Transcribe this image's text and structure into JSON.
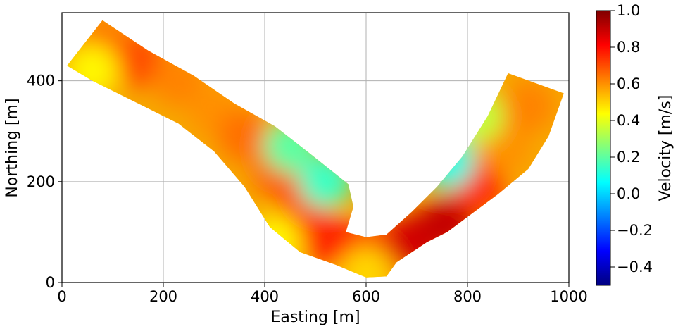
{
  "chart_data": {
    "type": "heatmap",
    "title": "",
    "xlabel": "Easting [m]",
    "ylabel": "Northing [m]",
    "xlim": [
      0,
      1000
    ],
    "ylim": [
      0,
      535
    ],
    "x_ticks": [
      0,
      200,
      400,
      600,
      800,
      1000
    ],
    "y_ticks": [
      0,
      200,
      400
    ],
    "grid": true,
    "colormap": "jet",
    "colorbar": {
      "label": "Velocity [m/s]",
      "range": [
        -0.5,
        1.0
      ],
      "ticks": [
        "1.0",
        "0.8",
        "0.6",
        "0.4",
        "0.2",
        "0.0",
        "−0.2",
        "−0.4"
      ],
      "tick_values": [
        1.0,
        0.8,
        0.6,
        0.4,
        0.2,
        0.0,
        -0.2,
        -0.4
      ],
      "placement": "right"
    },
    "river_channel": {
      "left_bank": [
        [
          10,
          430
        ],
        [
          80,
          520
        ],
        [
          170,
          460
        ],
        [
          260,
          410
        ],
        [
          340,
          355
        ],
        [
          420,
          310
        ],
        [
          490,
          255
        ],
        [
          565,
          195
        ],
        [
          575,
          150
        ],
        [
          560,
          100
        ],
        [
          600,
          90
        ],
        [
          640,
          95
        ],
        [
          690,
          140
        ],
        [
          740,
          190
        ],
        [
          790,
          250
        ],
        [
          840,
          330
        ],
        [
          880,
          415
        ]
      ],
      "right_bank": [
        [
          990,
          375
        ],
        [
          960,
          290
        ],
        [
          920,
          225
        ],
        [
          860,
          175
        ],
        [
          800,
          130
        ],
        [
          760,
          100
        ],
        [
          720,
          80
        ],
        [
          660,
          40
        ],
        [
          640,
          12
        ],
        [
          600,
          10
        ],
        [
          540,
          35
        ],
        [
          470,
          60
        ],
        [
          410,
          110
        ],
        [
          360,
          190
        ],
        [
          300,
          260
        ],
        [
          230,
          315
        ],
        [
          140,
          360
        ],
        [
          60,
          400
        ],
        [
          10,
          430
        ]
      ]
    },
    "velocity_field": [
      {
        "x": 80,
        "y": 470,
        "v": 0.65
      },
      {
        "x": 150,
        "y": 440,
        "v": 0.7
      },
      {
        "x": 230,
        "y": 400,
        "v": 0.62
      },
      {
        "x": 300,
        "y": 340,
        "v": 0.6
      },
      {
        "x": 360,
        "y": 290,
        "v": 0.65
      },
      {
        "x": 430,
        "y": 220,
        "v": 0.68
      },
      {
        "x": 480,
        "y": 160,
        "v": 0.7
      },
      {
        "x": 520,
        "y": 90,
        "v": 0.75
      },
      {
        "x": 580,
        "y": 60,
        "v": 0.8
      },
      {
        "x": 640,
        "y": 60,
        "v": 0.82
      },
      {
        "x": 700,
        "y": 85,
        "v": 0.88
      },
      {
        "x": 760,
        "y": 120,
        "v": 0.9
      },
      {
        "x": 820,
        "y": 190,
        "v": 0.75
      },
      {
        "x": 870,
        "y": 270,
        "v": 0.6
      },
      {
        "x": 920,
        "y": 350,
        "v": 0.62
      },
      {
        "x": 450,
        "y": 270,
        "v": 0.2
      },
      {
        "x": 520,
        "y": 200,
        "v": 0.15
      },
      {
        "x": 760,
        "y": 240,
        "v": 0.1
      },
      {
        "x": 820,
        "y": 330,
        "v": 0.35
      },
      {
        "x": 60,
        "y": 420,
        "v": 0.45
      },
      {
        "x": 420,
        "y": 80,
        "v": 0.45
      },
      {
        "x": 600,
        "y": 20,
        "v": 0.5
      }
    ]
  }
}
